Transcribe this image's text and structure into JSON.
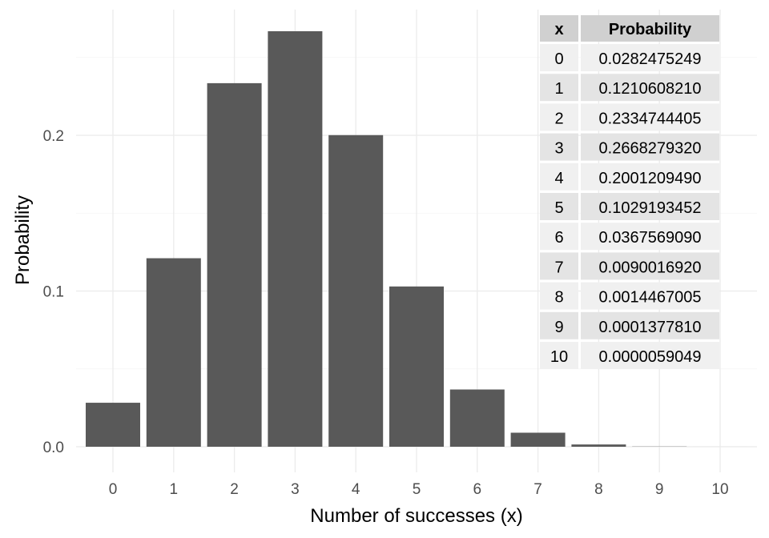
{
  "chart_data": {
    "type": "bar",
    "title": "",
    "xlabel": "Number of successes (x)",
    "ylabel": "Probability",
    "categories": [
      "0",
      "1",
      "2",
      "3",
      "4",
      "5",
      "6",
      "7",
      "8",
      "9",
      "10"
    ],
    "values": [
      0.0282475249,
      0.121060821,
      0.2334744405,
      0.266827932,
      0.200120949,
      0.1029193452,
      0.036756909,
      0.009001692,
      0.0014467005,
      0.000137781,
      5.9049e-06
    ],
    "ylim": [
      0,
      0.28
    ],
    "yticks": [
      "0.0",
      "0.1",
      "0.2"
    ],
    "ytick_values": [
      0,
      0.1,
      0.2
    ],
    "grid": true,
    "bar_color": "#595959",
    "table": {
      "position": "top-right",
      "headers": [
        "x",
        "Probability"
      ],
      "rows": [
        [
          "0",
          "0.0282475249"
        ],
        [
          "1",
          "0.1210608210"
        ],
        [
          "2",
          "0.2334744405"
        ],
        [
          "3",
          "0.2668279320"
        ],
        [
          "4",
          "0.2001209490"
        ],
        [
          "5",
          "0.1029193452"
        ],
        [
          "6",
          "0.0367569090"
        ],
        [
          "7",
          "0.0090016920"
        ],
        [
          "8",
          "0.0014467005"
        ],
        [
          "9",
          "0.0001377810"
        ],
        [
          "10",
          "0.0000059049"
        ]
      ],
      "header_color": "#d0d0d0",
      "row_colors": [
        "#f0f0f0",
        "#e4e4e4"
      ]
    }
  }
}
